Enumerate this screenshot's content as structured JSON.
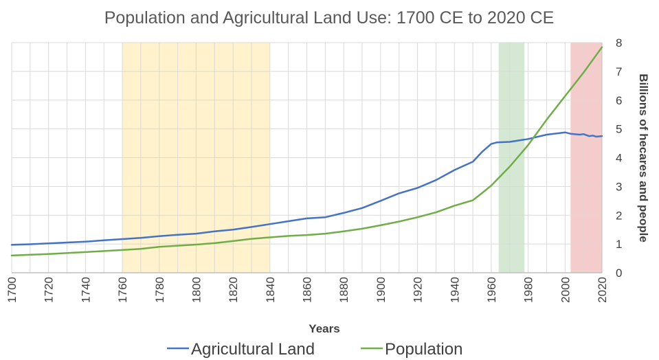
{
  "chart_data": {
    "type": "line",
    "title": "Population and Agricultural Land Use: 1700 CE to 2020 CE",
    "xlabel": "Years",
    "ylabel": "Billions of hecares and people",
    "xlim": [
      1700,
      2020
    ],
    "ylim": [
      0,
      8
    ],
    "x_ticks": [
      "1700",
      "1720",
      "1740",
      "1760",
      "1780",
      "1800",
      "1820",
      "1840",
      "1860",
      "1880",
      "1900",
      "1920",
      "1940",
      "1960",
      "1980",
      "2000",
      "2020"
    ],
    "y_ticks": [
      "0",
      "1",
      "2",
      "3",
      "4",
      "5",
      "6",
      "7",
      "8"
    ],
    "grid": true,
    "legend_position": "bottom",
    "shaded_periods": [
      {
        "start": 1760,
        "end": 1840,
        "color": "#fff2cc"
      },
      {
        "start": 1964,
        "end": 1978,
        "color": "#d5e8d4"
      },
      {
        "start": 2003,
        "end": 2020,
        "color": "#f4cccc"
      }
    ],
    "series": [
      {
        "name": "Agricultural Land",
        "color": "#4472c4",
        "points": [
          [
            1700,
            0.97
          ],
          [
            1710,
            0.99
          ],
          [
            1720,
            1.02
          ],
          [
            1730,
            1.05
          ],
          [
            1740,
            1.08
          ],
          [
            1750,
            1.13
          ],
          [
            1760,
            1.17
          ],
          [
            1770,
            1.21
          ],
          [
            1780,
            1.27
          ],
          [
            1790,
            1.32
          ],
          [
            1800,
            1.36
          ],
          [
            1810,
            1.44
          ],
          [
            1820,
            1.5
          ],
          [
            1830,
            1.59
          ],
          [
            1840,
            1.69
          ],
          [
            1850,
            1.79
          ],
          [
            1860,
            1.89
          ],
          [
            1870,
            1.93
          ],
          [
            1880,
            2.08
          ],
          [
            1890,
            2.25
          ],
          [
            1900,
            2.5
          ],
          [
            1910,
            2.76
          ],
          [
            1920,
            2.95
          ],
          [
            1930,
            3.22
          ],
          [
            1940,
            3.57
          ],
          [
            1950,
            3.86
          ],
          [
            1955,
            4.2
          ],
          [
            1960,
            4.48
          ],
          [
            1963,
            4.53
          ],
          [
            1970,
            4.55
          ],
          [
            1980,
            4.65
          ],
          [
            1990,
            4.8
          ],
          [
            2000,
            4.88
          ],
          [
            2003,
            4.83
          ],
          [
            2008,
            4.8
          ],
          [
            2010,
            4.82
          ],
          [
            2013,
            4.75
          ],
          [
            2015,
            4.77
          ],
          [
            2017,
            4.73
          ],
          [
            2020,
            4.75
          ]
        ]
      },
      {
        "name": "Population",
        "color": "#70ad47",
        "points": [
          [
            1700,
            0.6
          ],
          [
            1720,
            0.65
          ],
          [
            1740,
            0.72
          ],
          [
            1760,
            0.79
          ],
          [
            1770,
            0.83
          ],
          [
            1780,
            0.9
          ],
          [
            1800,
            0.98
          ],
          [
            1810,
            1.03
          ],
          [
            1820,
            1.1
          ],
          [
            1830,
            1.18
          ],
          [
            1840,
            1.23
          ],
          [
            1850,
            1.28
          ],
          [
            1860,
            1.31
          ],
          [
            1870,
            1.36
          ],
          [
            1880,
            1.44
          ],
          [
            1890,
            1.53
          ],
          [
            1900,
            1.65
          ],
          [
            1910,
            1.78
          ],
          [
            1920,
            1.93
          ],
          [
            1930,
            2.1
          ],
          [
            1940,
            2.33
          ],
          [
            1950,
            2.52
          ],
          [
            1955,
            2.77
          ],
          [
            1960,
            3.03
          ],
          [
            1970,
            3.69
          ],
          [
            1980,
            4.44
          ],
          [
            1990,
            5.32
          ],
          [
            2000,
            6.14
          ],
          [
            2010,
            6.96
          ],
          [
            2020,
            7.84
          ]
        ]
      }
    ]
  }
}
